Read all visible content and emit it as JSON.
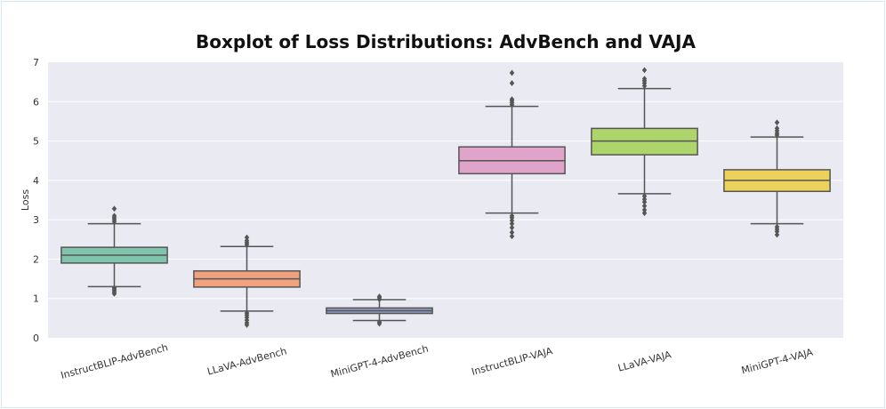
{
  "chart_data": {
    "type": "boxplot",
    "title": "Boxplot of Loss Distributions: AdvBench and VAJA",
    "xlabel": "",
    "ylabel": "Loss",
    "ylim": [
      0,
      7
    ],
    "yticks": [
      0,
      1,
      2,
      3,
      4,
      5,
      6,
      7
    ],
    "grid": true,
    "categories": [
      "InstructBLIP-AdvBench",
      "LLaVA-AdvBench",
      "MiniGPT-4-AdvBench",
      "InstructBLIP-VAJA",
      "LLaVA-VAJA",
      "MiniGPT-4-VAJA"
    ],
    "colors": [
      "#80c4ad",
      "#f0a27f",
      "#8e9cc3",
      "#e0a3c9",
      "#aed46c",
      "#ecd25a"
    ],
    "boxes": [
      {
        "name": "InstructBLIP-AdvBench",
        "whisker_low": 1.3,
        "q1": 1.9,
        "median": 2.1,
        "q3": 2.3,
        "whisker_high": 2.9,
        "outliers": [
          1.12,
          1.16,
          1.2,
          1.24,
          1.27,
          2.95,
          3.0,
          3.05,
          3.1,
          3.28
        ]
      },
      {
        "name": "LLaVA-AdvBench",
        "whisker_low": 0.68,
        "q1": 1.29,
        "median": 1.5,
        "q3": 1.7,
        "whisker_high": 2.32,
        "outliers": [
          0.33,
          0.38,
          0.45,
          0.52,
          0.58,
          0.63,
          2.37,
          2.42,
          2.47,
          2.55
        ]
      },
      {
        "name": "MiniGPT-4-AdvBench",
        "whisker_low": 0.44,
        "q1": 0.62,
        "median": 0.69,
        "q3": 0.76,
        "whisker_high": 0.97,
        "outliers": [
          0.36,
          0.4,
          0.98,
          1.02,
          1.05
        ]
      },
      {
        "name": "InstructBLIP-VAJA",
        "whisker_low": 3.17,
        "q1": 4.17,
        "median": 4.5,
        "q3": 4.85,
        "whisker_high": 5.88,
        "outliers": [
          2.58,
          2.68,
          2.8,
          2.9,
          2.98,
          3.05,
          3.1,
          5.92,
          5.97,
          6.02,
          6.06,
          6.47,
          6.73
        ]
      },
      {
        "name": "LLaVA-VAJA",
        "whisker_low": 3.66,
        "q1": 4.65,
        "median": 5.0,
        "q3": 5.32,
        "whisker_high": 6.33,
        "outliers": [
          3.17,
          3.25,
          3.35,
          3.45,
          3.52,
          3.6,
          6.4,
          6.47,
          6.53,
          6.58,
          6.8
        ]
      },
      {
        "name": "MiniGPT-4-VAJA",
        "whisker_low": 2.9,
        "q1": 3.72,
        "median": 4.0,
        "q3": 4.27,
        "whisker_high": 5.1,
        "outliers": [
          2.62,
          2.7,
          2.76,
          2.82,
          5.15,
          5.2,
          5.26,
          5.32,
          5.47
        ]
      }
    ]
  }
}
